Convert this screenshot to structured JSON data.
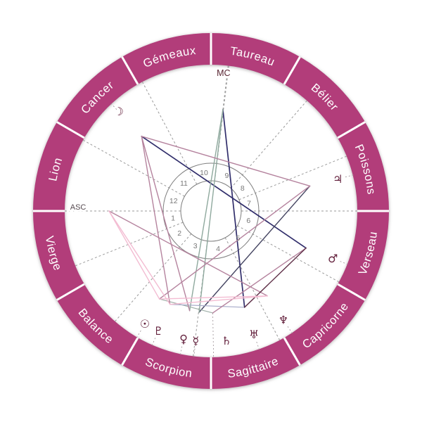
{
  "chart_data": {
    "type": "astrology-natal-wheel",
    "background": "#ffffff",
    "ring": {
      "color": "#b23d7a",
      "divider_color": "#ffffff",
      "label_color": "#ffffff"
    },
    "zodiac_signs": [
      {
        "label": "Poissons",
        "center_angle_deg": 15,
        "flipped": false
      },
      {
        "label": "Bélier",
        "center_angle_deg": 45,
        "flipped": false
      },
      {
        "label": "Taureau",
        "center_angle_deg": 75,
        "flipped": false
      },
      {
        "label": "Gémeaux",
        "center_angle_deg": 105,
        "flipped": false
      },
      {
        "label": "Cancer",
        "center_angle_deg": 135,
        "flipped": false
      },
      {
        "label": "Lion",
        "center_angle_deg": 165,
        "flipped": false
      },
      {
        "label": "Vierge",
        "center_angle_deg": 195,
        "flipped": true
      },
      {
        "label": "Balance",
        "center_angle_deg": 225,
        "flipped": true
      },
      {
        "label": "Scorpion",
        "center_angle_deg": 255,
        "flipped": true
      },
      {
        "label": "Sagittaire",
        "center_angle_deg": 285,
        "flipped": true
      },
      {
        "label": "Capricorne",
        "center_angle_deg": 315,
        "flipped": true
      },
      {
        "label": "Verseau",
        "center_angle_deg": 345,
        "flipped": true
      }
    ],
    "house_cusps_deg": [
      180,
      202,
      229,
      263,
      298,
      331,
      0,
      22,
      49,
      83,
      118,
      151
    ],
    "house_numbers": [
      "1",
      "2",
      "3",
      "4",
      "5",
      "6",
      "7",
      "8",
      "9",
      "10",
      "11",
      "12"
    ],
    "house_number_color": "#787878",
    "grid_color": "#9a9a9a",
    "axes": [
      {
        "name": "mc",
        "label": "MC",
        "angle_deg": 83.3,
        "label_angle_deg": 84.8,
        "label_radius": 197,
        "label_color": "#5a2633",
        "label_size": 12.5
      },
      {
        "name": "asc",
        "label": "ASC",
        "angle_deg": 180,
        "label_angle_deg": 178.5,
        "label_radius": 189,
        "label_color": "#564a50",
        "label_size": 11
      }
    ],
    "planets": [
      {
        "name": "sun",
        "glyph": "☉",
        "angle_deg": -120.4
      },
      {
        "name": "pluto",
        "glyph": "♇",
        "angle_deg": -113.7
      },
      {
        "name": "venus",
        "glyph": "♀",
        "angle_deg": -102.1
      },
      {
        "name": "mercury",
        "glyph": "☿",
        "angle_deg": -96.7
      },
      {
        "name": "saturn",
        "glyph": "♄",
        "angle_deg": -83.2,
        "aspect_angle_deg": -89
      },
      {
        "name": "uranus",
        "glyph": "♅",
        "angle_deg": -70.8
      },
      {
        "name": "neptune",
        "glyph": "♆",
        "angle_deg": -56.4
      },
      {
        "name": "mars",
        "glyph": "♂",
        "angle_deg": -21.3
      },
      {
        "name": "jupiter",
        "glyph": "♃",
        "angle_deg": 14.2
      },
      {
        "name": "moon",
        "glyph": "☽",
        "angle_deg": 132.9,
        "radius": 193
      }
    ],
    "glyph_color": "#63203c",
    "aspect_palette": {
      "navy": "#312e6b",
      "slate": "#434360",
      "teal": "#8fa99e",
      "sage": "#9fb0a8",
      "lavender": "#a7abc9",
      "mauve": "#b5839e",
      "maroon": "#5f3048",
      "pink": "#f3bcd2"
    },
    "aspects": [
      {
        "from": "moon",
        "to": "mars",
        "color": "navy"
      },
      {
        "from": "mc",
        "to": "uranus",
        "color": "navy"
      },
      {
        "from": "jupiter",
        "to": "mercury",
        "color": "slate"
      },
      {
        "from": "mc",
        "to": "venus",
        "color": "teal"
      },
      {
        "from": "mc",
        "to": "mercury",
        "color": "teal"
      },
      {
        "from": "sun",
        "to": "saturn",
        "color": "sage"
      },
      {
        "from": "pluto",
        "to": "uranus",
        "color": "lavender"
      },
      {
        "from": "moon",
        "to": "jupiter",
        "color": "mauve"
      },
      {
        "from": "jupiter",
        "to": "sun",
        "color": "mauve"
      },
      {
        "from": "asc",
        "to": "neptune",
        "color": "mauve"
      },
      {
        "from": "mars",
        "to": "saturn",
        "color": "mauve"
      },
      {
        "from": "moon",
        "to": "pluto",
        "color": "mauve"
      },
      {
        "from": "moon",
        "to": "venus",
        "color": "mauve"
      },
      {
        "from": "mars",
        "to": "uranus",
        "color": "maroon"
      },
      {
        "from": "asc",
        "to": "sun",
        "color": "pink"
      },
      {
        "from": "asc",
        "to": "pluto",
        "color": "pink"
      },
      {
        "from": "sun",
        "to": "neptune",
        "color": "pink"
      },
      {
        "from": "pluto",
        "to": "neptune",
        "color": "pink"
      }
    ]
  }
}
